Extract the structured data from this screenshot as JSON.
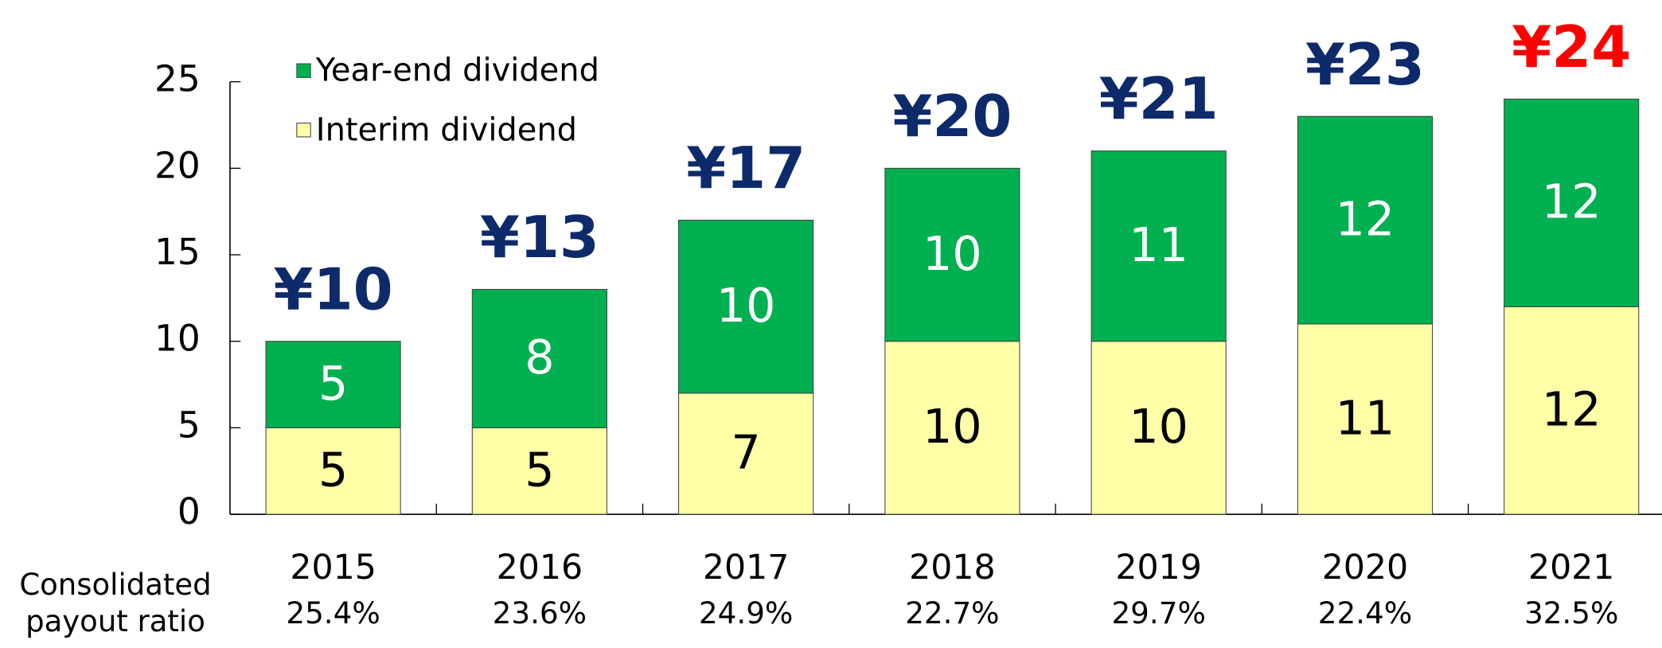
{
  "chart_data": {
    "type": "stacked_bar",
    "categories": [
      "2015",
      "2016",
      "2017",
      "2018",
      "2019",
      "2020",
      "2021"
    ],
    "series": [
      {
        "name": "Interim dividend",
        "color": "#ffffa8",
        "label_color": "#000000",
        "values": [
          5,
          5,
          7,
          10,
          10,
          11,
          12
        ]
      },
      {
        "name": "Year-end dividend",
        "color": "#00b050",
        "label_color": "#ffffff",
        "values": [
          5,
          8,
          10,
          10,
          11,
          12,
          12
        ]
      }
    ],
    "total_labels": [
      "¥10",
      "¥13",
      "¥17",
      "¥20",
      "¥21",
      "¥23",
      "¥24"
    ],
    "total_label_colors": [
      "#0d2a6b",
      "#0d2a6b",
      "#0d2a6b",
      "#0d2a6b",
      "#0d2a6b",
      "#0d2a6b",
      "#ff0000"
    ],
    "payout_ratio": {
      "label": "Consolidated payout ratio",
      "values": [
        25.4,
        23.6,
        24.9,
        22.7,
        29.7,
        22.4,
        32.5
      ],
      "value_labels": [
        "25.4%",
        "23.6%",
        "24.9%",
        "22.7%",
        "29.7%",
        "22.4%",
        "32.5%"
      ]
    },
    "ylim": [
      0,
      25
    ],
    "yticks": [
      0,
      5,
      10,
      15,
      20,
      25
    ]
  }
}
